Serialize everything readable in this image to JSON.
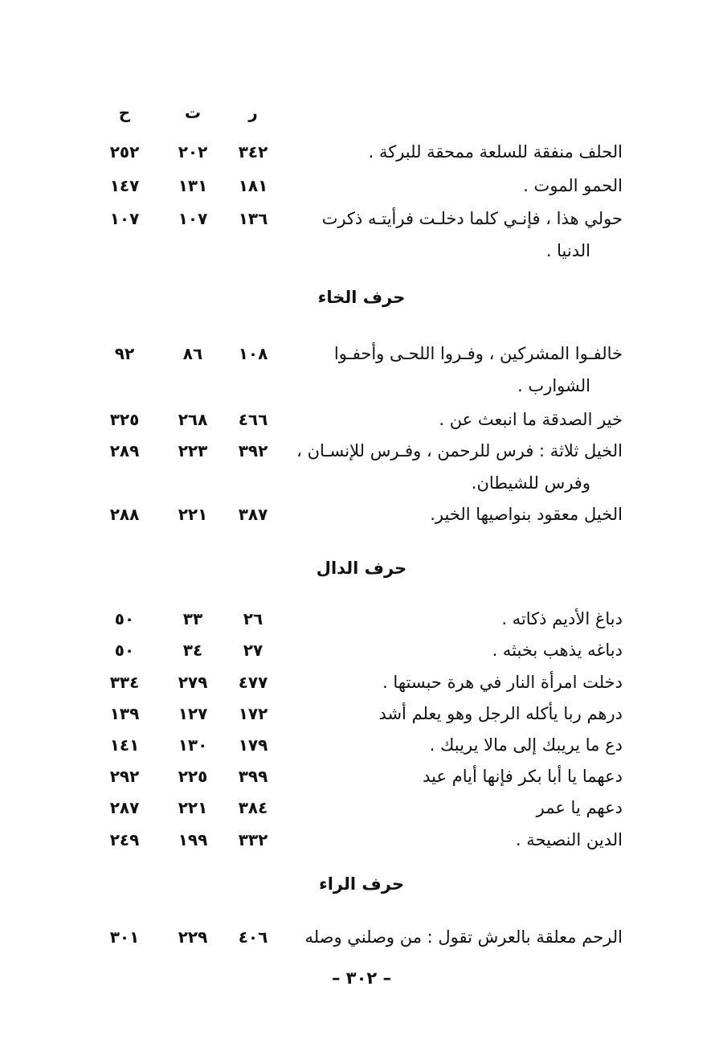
{
  "column_headers": [
    "ر",
    "ت",
    "ح"
  ],
  "sections": [
    {
      "heading": "",
      "entries": [
        {
          "text": [
            "الحلف منفقة للسلعة ممحقة للبركة ."
          ],
          "refs": [
            "٣٤٢",
            "٢٠٢",
            "٢٥٢"
          ]
        },
        {
          "text": [
            "الحمو الموت ."
          ],
          "refs": [
            "١٨١",
            "١٣١",
            "١٤٧"
          ]
        },
        {
          "text": [
            "حولي هذا ، فإنـي كلما دخلـت فرأيتـه ذكرت",
            "الدنيا ."
          ],
          "refs": [
            "١٣٦",
            "١٠٧",
            "١٠٧"
          ]
        }
      ]
    },
    {
      "heading": "حرف الخاء",
      "entries": [
        {
          "text": [
            "خالفـوا المشركين ، وفـروا اللحـى وأحفـوا",
            "الشوارب ."
          ],
          "refs": [
            "١٠٨",
            "٨٦",
            "٩٢"
          ]
        },
        {
          "text": [
            "خير الصدقة ما انبعث عن ."
          ],
          "refs": [
            "٤٦٦",
            "٢٦٨",
            "٣٢٥"
          ]
        },
        {
          "text": [
            "الخيل ثلاثة : فرس للرحمن ، وفـرس للإنسـان ،",
            "وفرس للشيطان."
          ],
          "refs": [
            "٣٩٢",
            "٢٢٣",
            "٢٨٩"
          ]
        },
        {
          "text": [
            "الخيل معقود بنواصيها الخير."
          ],
          "refs": [
            "٣٨٧",
            "٢٢١",
            "٢٨٨"
          ]
        }
      ]
    },
    {
      "heading": "حرف الدال",
      "entries": [
        {
          "text": [
            "دباغ الأديم ذكاته ."
          ],
          "refs": [
            "٢٦",
            "٣٣",
            "٥٠"
          ]
        },
        {
          "text": [
            "دباغه يذهب بخبثه ."
          ],
          "refs": [
            "٢٧",
            "٣٤",
            "٥٠"
          ]
        },
        {
          "text": [
            "دخلت امرأة النار في هرة حبستها ."
          ],
          "refs": [
            "٤٧٧",
            "٢٧٩",
            "٣٣٤"
          ]
        },
        {
          "text": [
            "درهم ربا يأكله الرجل وهو يعلم أشد"
          ],
          "refs": [
            "١٧٢",
            "١٢٧",
            "١٣٩"
          ]
        },
        {
          "text": [
            "دع ما يريبك إلى مالا يريبك ."
          ],
          "refs": [
            "١٧٩",
            "١٣٠",
            "١٤١"
          ]
        },
        {
          "text": [
            "دعهما يا أبا بكر فإنها أيام عيد"
          ],
          "refs": [
            "٣٩٩",
            "٢٢٥",
            "٢٩٢"
          ]
        },
        {
          "text": [
            "دعهم يا عمر"
          ],
          "refs": [
            "٣٨٤",
            "٢٢١",
            "٢٨٧"
          ]
        },
        {
          "text": [
            "الدين النصيحة ."
          ],
          "refs": [
            "٣٣٢",
            "١٩٩",
            "٢٤٩"
          ]
        }
      ]
    },
    {
      "heading": "حرف الراء",
      "entries": [
        {
          "text": [
            "الرحم معلقة بالعرش تقول : من وصلني وصله"
          ],
          "refs": [
            "٤٠٦",
            "٢٢٩",
            "٣٠١"
          ]
        }
      ]
    }
  ],
  "page_number": "– ٣٠٢ –"
}
